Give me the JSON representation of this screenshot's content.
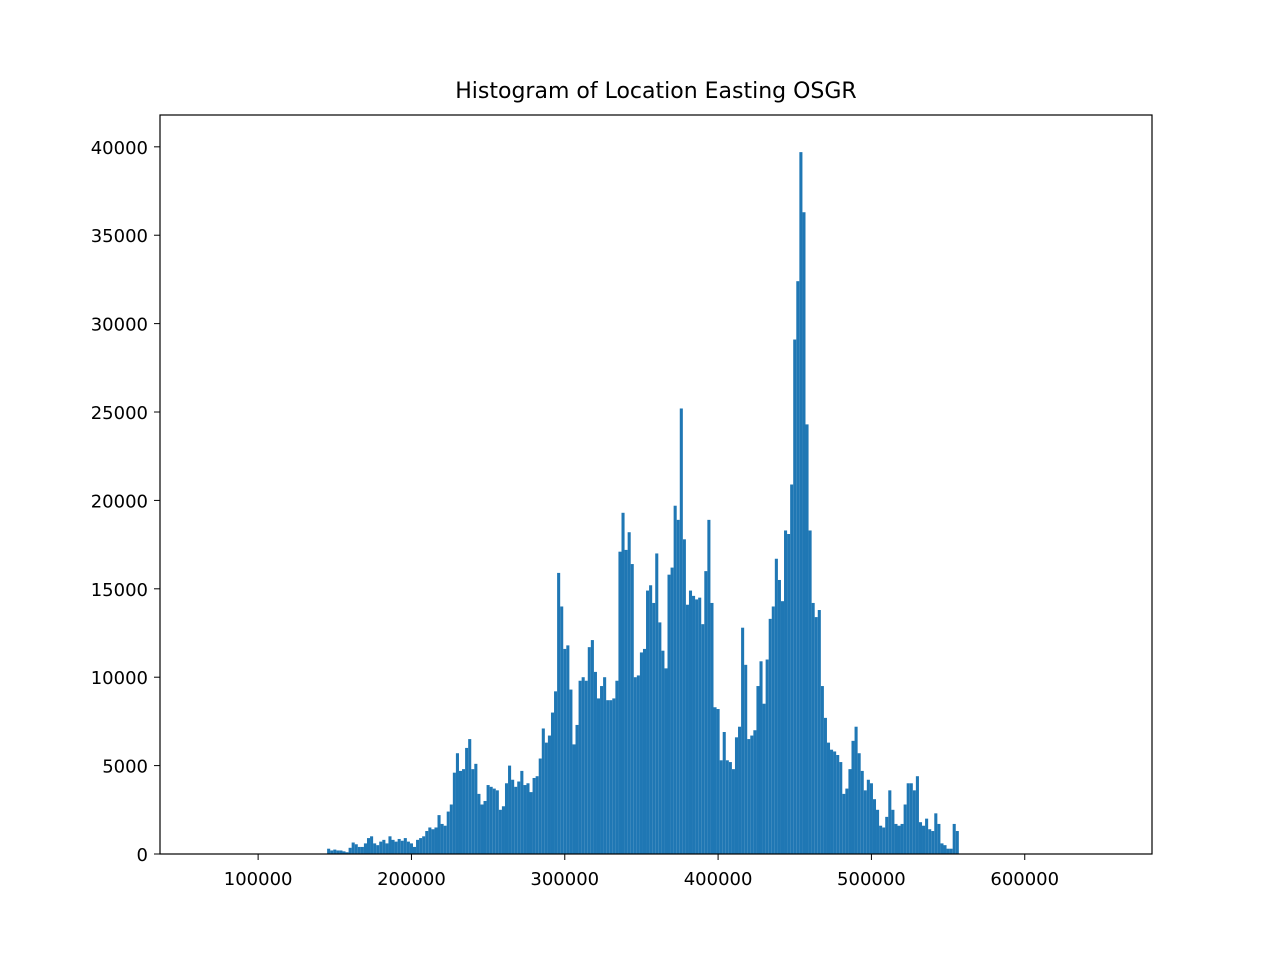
{
  "chart_data": {
    "type": "bar",
    "title": "Histogram of Location Easting OSGR",
    "xlabel": "",
    "ylabel": "",
    "xlim": [
      36000,
      683000
    ],
    "ylim": [
      0,
      41800
    ],
    "bin_start": 145000,
    "bin_width": 2000,
    "x_ticks": [
      {
        "value": 100000,
        "label": "100000"
      },
      {
        "value": 200000,
        "label": "200000"
      },
      {
        "value": 300000,
        "label": "300000"
      },
      {
        "value": 400000,
        "label": "400000"
      },
      {
        "value": 500000,
        "label": "500000"
      },
      {
        "value": 600000,
        "label": "600000"
      }
    ],
    "y_ticks": [
      {
        "value": 0,
        "label": "0"
      },
      {
        "value": 5000,
        "label": "5000"
      },
      {
        "value": 10000,
        "label": "10000"
      },
      {
        "value": 15000,
        "label": "15000"
      },
      {
        "value": 20000,
        "label": "20000"
      },
      {
        "value": 25000,
        "label": "25000"
      },
      {
        "value": 30000,
        "label": "30000"
      },
      {
        "value": 35000,
        "label": "35000"
      },
      {
        "value": 40000,
        "label": "40000"
      }
    ],
    "values": [
      300,
      200,
      250,
      200,
      200,
      150,
      100,
      350,
      650,
      550,
      400,
      400,
      600,
      900,
      1000,
      600,
      500,
      700,
      800,
      600,
      1000,
      800,
      700,
      850,
      750,
      900,
      700,
      600,
      400,
      800,
      900,
      1000,
      1300,
      1500,
      1400,
      1500,
      2200,
      1700,
      1600,
      2400,
      2800,
      4600,
      5700,
      4700,
      4800,
      6000,
      6500,
      4800,
      5100,
      3400,
      2800,
      3000,
      3900,
      3800,
      3700,
      3600,
      2500,
      2700,
      4000,
      5000,
      4200,
      3800,
      4100,
      4700,
      3900,
      4000,
      3500,
      4300,
      4400,
      5400,
      7100,
      6300,
      6700,
      8000,
      9200,
      15900,
      14000,
      11600,
      11800,
      9300,
      6200,
      7300,
      9800,
      10000,
      9800,
      11700,
      12100,
      10300,
      8800,
      9500,
      10000,
      8700,
      8700,
      8800,
      9800,
      17100,
      19300,
      17200,
      18200,
      16400,
      10000,
      10100,
      11400,
      11600,
      14900,
      15200,
      14200,
      17000,
      13100,
      11500,
      10500,
      15800,
      16200,
      19700,
      18900,
      25200,
      17800,
      14100,
      14900,
      14600,
      14400,
      14500,
      13000,
      16000,
      18900,
      14200,
      8300,
      8200,
      5300,
      6900,
      5300,
      5200,
      4800,
      6600,
      7200,
      12800,
      10700,
      6500,
      6700,
      7000,
      9500,
      10900,
      8500,
      11000,
      13300,
      14000,
      16700,
      15500,
      14300,
      18300,
      18100,
      20900,
      29100,
      32400,
      39700,
      36300,
      24300,
      18300,
      14200,
      13400,
      13800,
      9500,
      7700,
      6300,
      5900,
      5800,
      5600,
      5200,
      3400,
      3700,
      4800,
      6400,
      7200,
      5700,
      4700,
      3600,
      4200,
      4000,
      3100,
      2500,
      1600,
      1500,
      2100,
      3600,
      2500,
      1700,
      1600,
      1700,
      2800,
      4000,
      4000,
      3600,
      4400,
      1800,
      1600,
      2000,
      1400,
      1300,
      2300,
      1700,
      600,
      500,
      300,
      300,
      1700,
      1300
    ]
  }
}
